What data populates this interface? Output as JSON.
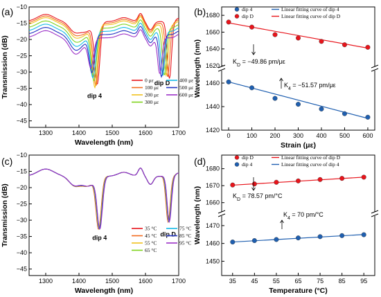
{
  "chart_data": [
    {
      "panel": "(a)",
      "type": "line",
      "xlabel": "Wavelength (nm)",
      "ylabel": "Transmission (dB)",
      "xlim": [
        1250,
        1700
      ],
      "ylim": [
        -47,
        -10
      ],
      "xticks": [
        1300,
        1400,
        1500,
        1600,
        1700
      ],
      "yticks": [
        -10,
        -15,
        -20,
        -25,
        -30,
        -35,
        -40,
        -45
      ],
      "legend_position": "bottom-right",
      "annotations": [
        {
          "text": "dip 4",
          "x": 1447,
          "y": -38
        },
        {
          "text": "dip D",
          "x": 1650,
          "y": -34
        }
      ],
      "series": [
        {
          "name": "0 με",
          "color": "#e8141b",
          "base": -14.5,
          "dip1": [
            1455,
            -33
          ],
          "dip2": [
            1672,
            -32
          ]
        },
        {
          "name": "100 με",
          "color": "#f26b1d",
          "base": -15.0,
          "dip1": [
            1451,
            -33.5
          ],
          "dip2": [
            1667,
            -31.5
          ]
        },
        {
          "name": "200 με",
          "color": "#f2c21c",
          "base": -15.5,
          "dip1": [
            1448,
            -34
          ],
          "dip2": [
            1662,
            -31
          ]
        },
        {
          "name": "300 με",
          "color": "#7fd31c",
          "base": -16.5,
          "dip1": [
            1445,
            -32
          ],
          "dip2": [
            1657,
            -31
          ]
        },
        {
          "name": "400 με",
          "color": "#12b9e6",
          "base": -17.5,
          "dip1": [
            1442,
            -31
          ],
          "dip2": [
            1652,
            -31
          ]
        },
        {
          "name": "500 με",
          "color": "#2133c2",
          "base": -18.5,
          "dip1": [
            1439,
            -29.5
          ],
          "dip2": [
            1648,
            -31.5
          ]
        },
        {
          "name": "600 με",
          "color": "#9b2fc7",
          "base": -19.5,
          "dip1": [
            1436,
            -28
          ],
          "dip2": [
            1643,
            -30.5
          ]
        }
      ]
    },
    {
      "panel": "(b)",
      "type": "scatter",
      "xlabel": "Strain (με)",
      "ylabel": "Wavelength (nm)",
      "xlim": [
        -30,
        630
      ],
      "ylim_top": [
        1620,
        1690
      ],
      "ylim_bottom": [
        1420,
        1470
      ],
      "xticks": [
        0,
        100,
        200,
        300,
        400,
        500,
        600
      ],
      "yticks_top": [
        1620,
        1640,
        1660,
        1680
      ],
      "yticks_bottom": [
        1420,
        1440,
        1460
      ],
      "legend_position": "top",
      "legend": [
        "dip 4",
        "Linear fitting curve of dip 4",
        "dip D",
        "Linear fitting curve of dip D"
      ],
      "annotations": [
        {
          "text_prefix": "K",
          "sub": "D",
          "text_suffix": " = −49.86 pm/με"
        },
        {
          "text_prefix": "K",
          "sub": "4",
          "text_suffix": " = −51.57 pm/με"
        }
      ],
      "series": [
        {
          "name": "dip D",
          "color": "#e8141b",
          "x": [
            0,
            100,
            200,
            300,
            400,
            500,
            600
          ],
          "y": [
            1672,
            1666,
            1657,
            1653,
            1649,
            1645,
            1642
          ],
          "fit": [
            1671,
            1641
          ]
        },
        {
          "name": "dip 4",
          "color": "#1f5fb0",
          "x": [
            0,
            100,
            200,
            300,
            400,
            500,
            600
          ],
          "y": [
            1461,
            1456,
            1447,
            1442,
            1438,
            1434,
            1431
          ],
          "fit": [
            1461,
            1430
          ]
        }
      ]
    },
    {
      "panel": "(c)",
      "type": "line",
      "xlabel": "Wavelength (nm)",
      "ylabel": "Transmission (dB)",
      "xlim": [
        1250,
        1700
      ],
      "ylim": [
        -47,
        -10
      ],
      "xticks": [
        1300,
        1400,
        1500,
        1600,
        1700
      ],
      "yticks": [
        -10,
        -15,
        -20,
        -25,
        -30,
        -35,
        -40,
        -45
      ],
      "legend_position": "bottom-right",
      "annotations": [
        {
          "text": "dip 4",
          "x": 1462,
          "y": -36
        },
        {
          "text": "dip D",
          "x": 1668,
          "y": -35
        }
      ],
      "series": [
        {
          "name": "35 °C",
          "color": "#e8141b"
        },
        {
          "name": "45 °C",
          "color": "#f26b1d"
        },
        {
          "name": "55 °C",
          "color": "#f2c21c"
        },
        {
          "name": "65 °C",
          "color": "#7fd31c"
        },
        {
          "name": "75 °C",
          "color": "#12b9e6"
        },
        {
          "name": "85 °C",
          "color": "#2133c2"
        },
        {
          "name": "95 °C",
          "color": "#9b2fc7"
        }
      ],
      "dip1": [
        1461,
        -32
      ],
      "dip2": [
        1670,
        -30.5
      ],
      "base": -16.5
    },
    {
      "panel": "(d)",
      "type": "scatter",
      "xlabel": "Temperature (°C)",
      "ylabel": "Wavelength (nm)",
      "xlim": [
        30,
        100
      ],
      "ylim_top": [
        1655,
        1688
      ],
      "ylim_bottom": [
        1442,
        1475
      ],
      "xticks": [
        35,
        45,
        55,
        65,
        75,
        85,
        95
      ],
      "yticks_top": [
        1660,
        1670,
        1680
      ],
      "yticks_bottom": [
        1450,
        1460,
        1470
      ],
      "legend_position": "top",
      "legend": [
        "dip D",
        "Linear fitting curve of dip D",
        "dip 4",
        "Linear fitting curve of dip 4"
      ],
      "annotations": [
        {
          "text_prefix": "K",
          "sub": "D",
          "text_suffix": " = 78.57 pm/°C"
        },
        {
          "text_prefix": "K",
          "sub": "4",
          "text_suffix": " = 70 pm/°C"
        }
      ],
      "series": [
        {
          "name": "dip D",
          "color": "#e8141b",
          "x": [
            35,
            45,
            55,
            65,
            75,
            85,
            95
          ],
          "y": [
            1670.4,
            1671.0,
            1672.0,
            1672.8,
            1673.6,
            1674.3,
            1675.0
          ],
          "fit": [
            1670.3,
            1675.0
          ]
        },
        {
          "name": "dip 4",
          "color": "#1f5fb0",
          "x": [
            35,
            45,
            55,
            65,
            75,
            85,
            95
          ],
          "y": [
            1460.8,
            1461.6,
            1462.2,
            1463.1,
            1463.8,
            1464.4,
            1464.9
          ],
          "fit": [
            1460.8,
            1465.0
          ]
        }
      ]
    }
  ]
}
